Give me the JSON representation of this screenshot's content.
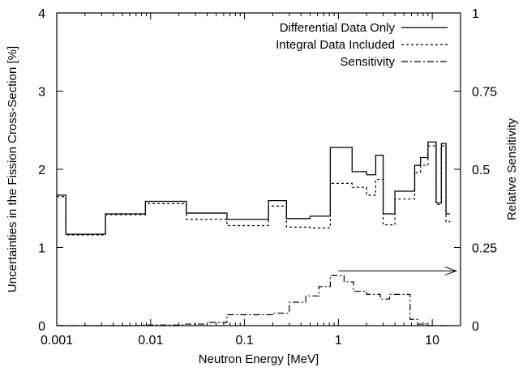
{
  "chart_data": {
    "type": "line",
    "xlabel": "Neutron Energy [MeV]",
    "ylabel": "Uncertainties in the Fission Cross-Section [%]",
    "y2label": "Relative Sensitivity",
    "xscale": "log",
    "xlim": [
      0.001,
      20
    ],
    "ylim": [
      0,
      4
    ],
    "y2lim": [
      0,
      1
    ],
    "xticks": [
      {
        "value": 0.001,
        "label": "0.001"
      },
      {
        "value": 0.01,
        "label": "0.01"
      },
      {
        "value": 0.1,
        "label": "0.1"
      },
      {
        "value": 1,
        "label": "1"
      },
      {
        "value": 10,
        "label": "10"
      }
    ],
    "yticks": [
      {
        "value": 0,
        "label": "0"
      },
      {
        "value": 1,
        "label": "1"
      },
      {
        "value": 2,
        "label": "2"
      },
      {
        "value": 3,
        "label": "3"
      },
      {
        "value": 4,
        "label": "4"
      }
    ],
    "y2ticks": [
      {
        "value": 0,
        "label": "0"
      },
      {
        "value": 0.25,
        "label": "0.25"
      },
      {
        "value": 0.5,
        "label": "0.5"
      },
      {
        "value": 0.75,
        "label": "0.75"
      },
      {
        "value": 1,
        "label": "1"
      }
    ],
    "grid": false,
    "legend_position": "top-right",
    "series": [
      {
        "name": "Differential Data Only",
        "style": "solid",
        "axis": "left",
        "edges": [
          0.001,
          0.00125,
          0.0033,
          0.0088,
          0.024,
          0.065,
          0.18,
          0.28,
          0.5,
          0.82,
          1.4,
          2.0,
          2.5,
          3.0,
          4.0,
          6.5,
          7.5,
          9.0,
          11.0,
          12.5,
          14.0,
          15.5
        ],
        "values": [
          1.67,
          1.17,
          1.43,
          1.59,
          1.44,
          1.36,
          1.6,
          1.37,
          1.4,
          2.28,
          1.97,
          1.93,
          2.18,
          1.43,
          1.72,
          2.05,
          2.15,
          2.35,
          1.57,
          2.33,
          1.43
        ]
      },
      {
        "name": "Integral Data Included",
        "style": "dotted",
        "axis": "left",
        "edges": [
          0.001,
          0.00125,
          0.0033,
          0.0088,
          0.024,
          0.065,
          0.18,
          0.28,
          0.5,
          0.82,
          1.4,
          2.0,
          2.5,
          3.0,
          4.0,
          6.5,
          7.5,
          9.0,
          11.0,
          12.5,
          14.0,
          15.5
        ],
        "values": [
          1.65,
          1.16,
          1.42,
          1.56,
          1.36,
          1.28,
          1.53,
          1.26,
          1.25,
          1.82,
          1.77,
          1.67,
          1.87,
          1.29,
          1.62,
          1.96,
          2.05,
          2.3,
          1.55,
          2.3,
          1.33
        ]
      },
      {
        "name": "Sensitivity",
        "style": "dashdot",
        "axis": "right",
        "edges": [
          0.001,
          0.008,
          0.022,
          0.04,
          0.065,
          0.2,
          0.3,
          0.45,
          0.62,
          0.82,
          1.15,
          1.45,
          2.0,
          2.8,
          3.5,
          5.8,
          7.0,
          9.0,
          15.5
        ],
        "values": [
          0.0,
          0.002,
          0.005,
          0.01,
          0.035,
          0.04,
          0.075,
          0.095,
          0.125,
          0.16,
          0.14,
          0.11,
          0.1,
          0.085,
          0.1,
          0.02,
          0.005,
          0.0
        ]
      }
    ],
    "annotations": [
      {
        "type": "arrow",
        "x_from": 1.0,
        "x_to": 18.0,
        "y2": 0.175
      }
    ]
  }
}
